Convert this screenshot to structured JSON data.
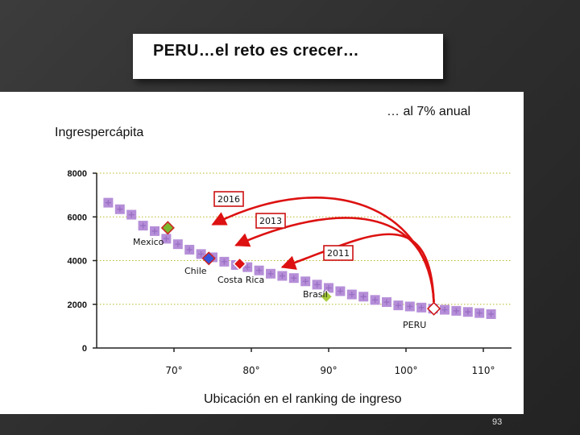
{
  "slide": {
    "title": "PERU…el reto es crecer…",
    "subtitle": "… al 7% anual",
    "page_number": "93"
  },
  "colors": {
    "background": "#2f2f2f",
    "panel": "#ffffff",
    "band": "#b58ed8",
    "band_cross": "#9a6fc4",
    "arrow": "#dd1111",
    "gridline": "#b9b92a",
    "label_box": "#cc1111",
    "mexico": "#7ab82e",
    "chile": "#3355dd",
    "costa_rica": "#dd1111",
    "brasil": "#a8cc3a",
    "peru": "#ffffff"
  },
  "chart_data": {
    "type": "scatter",
    "xlabel": "Ubicación en el ranking de ingreso",
    "ylabel": "Ingrespercápita",
    "xlim": [
      60,
      113
    ],
    "ylim": [
      0,
      8000
    ],
    "x_ticks": [
      70,
      80,
      90,
      100,
      110
    ],
    "x_tick_labels": [
      "70°",
      "80°",
      "90°",
      "100°",
      "110°"
    ],
    "y_ticks": [
      0,
      2000,
      4000,
      6000,
      8000
    ],
    "y_tick_labels": [
      "0",
      "2000",
      "4000",
      "6000",
      "8000"
    ],
    "grid": true,
    "band": {
      "x": [
        61.5,
        63,
        64.5,
        66,
        67.5,
        69,
        70.5,
        72,
        73.5,
        75,
        76.5,
        78,
        79.5,
        81,
        82.5,
        84,
        85.5,
        87,
        88.5,
        90,
        91.5,
        93,
        94.5,
        96,
        97.5,
        99,
        100.5,
        102,
        103.5,
        105,
        106.5,
        108,
        109.5,
        111
      ],
      "y": [
        6650,
        6350,
        6100,
        5600,
        5350,
        5000,
        4750,
        4500,
        4300,
        4150,
        3950,
        3800,
        3700,
        3550,
        3400,
        3300,
        3200,
        3050,
        2900,
        2750,
        2600,
        2450,
        2350,
        2200,
        2100,
        1950,
        1900,
        1850,
        1800,
        1750,
        1700,
        1650,
        1600,
        1550
      ]
    },
    "points": [
      {
        "label": "Mexico",
        "x": 69.2,
        "y": 5500
      },
      {
        "label": "Chile",
        "x": 74.5,
        "y": 4100
      },
      {
        "label": "Costa Rica",
        "x": 78.5,
        "y": 3850
      },
      {
        "label": "Brasil",
        "x": 89.7,
        "y": 2350
      },
      {
        "label": "PERU",
        "x": 103.6,
        "y": 1800
      }
    ],
    "targets": [
      {
        "label": "2016",
        "x": 75,
        "y": 5650
      },
      {
        "label": "2013",
        "x": 78,
        "y": 4700
      },
      {
        "label": "2011",
        "x": 84,
        "y": 3700
      }
    ],
    "arrows": [
      {
        "from": "PERU",
        "to": "2016"
      },
      {
        "from": "PERU",
        "to": "2013"
      },
      {
        "from": "PERU",
        "to": "2011"
      }
    ]
  }
}
